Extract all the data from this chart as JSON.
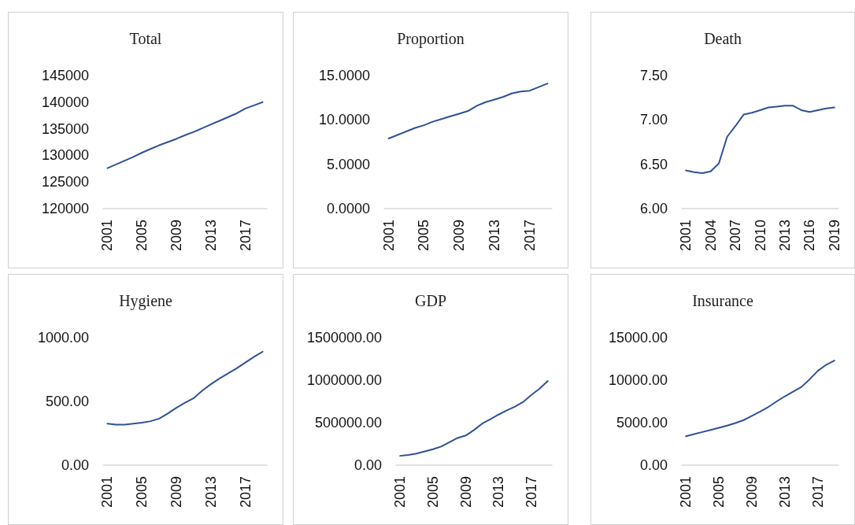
{
  "chart_data": [
    {
      "type": "line",
      "title": "Total",
      "categories": [
        "2001",
        null,
        null,
        null,
        "2005",
        null,
        null,
        null,
        "2009",
        null,
        null,
        null,
        "2013",
        null,
        null,
        null,
        "2017",
        null,
        null
      ],
      "series": [
        {
          "color": "#2f5196",
          "values": [
            127600,
            128300,
            129000,
            129700,
            130500,
            131200,
            131900,
            132500,
            133100,
            133800,
            134400,
            135100,
            135800,
            136500,
            137200,
            137900,
            138800,
            139400,
            140000
          ]
        }
      ],
      "ylim": [
        120000,
        145000
      ],
      "yticks": [
        120000,
        125000,
        130000,
        135000,
        140000,
        145000
      ],
      "grid": false,
      "marker": "none",
      "line_style": "solid"
    },
    {
      "type": "line",
      "title": "Proportion",
      "categories": [
        "2001",
        null,
        null,
        null,
        "2005",
        null,
        null,
        null,
        "2009",
        null,
        null,
        null,
        "2013",
        null,
        null,
        null,
        "2017",
        null,
        null
      ],
      "series": [
        {
          "color": "#2f5196",
          "values": [
            7.9,
            8.3,
            8.7,
            9.1,
            9.4,
            9.8,
            10.1,
            10.4,
            10.7,
            11.0,
            11.6,
            12.0,
            12.3,
            12.6,
            13.0,
            13.2,
            13.3,
            13.7,
            14.1
          ]
        }
      ],
      "ylim": [
        0,
        15
      ],
      "yticks": [
        {
          "value": 0,
          "label": "0.0000"
        },
        {
          "value": 5,
          "label": "5.0000"
        },
        {
          "value": 10,
          "label": "10.0000"
        },
        {
          "value": 15,
          "label": "15.0000"
        }
      ],
      "grid": false,
      "marker": "none",
      "line_style": "solid"
    },
    {
      "type": "line",
      "title": "Death",
      "categories": [
        "2001",
        null,
        null,
        "2004",
        null,
        null,
        "2007",
        null,
        null,
        "2010",
        null,
        null,
        "2013",
        null,
        null,
        "2016",
        null,
        null,
        "2019"
      ],
      "series": [
        {
          "color": "#2f5196",
          "values": [
            6.43,
            6.41,
            6.4,
            6.42,
            6.51,
            6.81,
            6.93,
            7.06,
            7.08,
            7.11,
            7.14,
            7.15,
            7.16,
            7.16,
            7.11,
            7.09,
            7.11,
            7.13,
            7.14
          ]
        }
      ],
      "ylim": [
        6,
        7.5
      ],
      "yticks": [
        {
          "value": 6,
          "label": "6.00"
        },
        {
          "value": 6.5,
          "label": "6.50"
        },
        {
          "value": 7,
          "label": "7.00"
        },
        {
          "value": 7.5,
          "label": "7.50"
        }
      ],
      "grid": false,
      "marker": "none",
      "line_style": "solid"
    },
    {
      "type": "line",
      "title": "Hygiene",
      "categories": [
        "2001",
        null,
        null,
        null,
        "2005",
        null,
        null,
        null,
        "2009",
        null,
        null,
        null,
        "2013",
        null,
        null,
        null,
        "2017",
        null,
        null
      ],
      "series": [
        {
          "color": "#2f5196",
          "values": [
            326,
            318,
            318,
            325,
            333,
            345,
            365,
            405,
            450,
            490,
            525,
            585,
            635,
            680,
            720,
            760,
            805,
            850,
            890
          ]
        }
      ],
      "ylim": [
        0,
        1000
      ],
      "yticks": [
        {
          "value": 0,
          "label": "0.00"
        },
        {
          "value": 500,
          "label": "500.00"
        },
        {
          "value": 1000,
          "label": "1000.00"
        }
      ],
      "grid": false,
      "marker": "none",
      "line_style": "solid"
    },
    {
      "type": "line",
      "title": "GDP",
      "categories": [
        "2001",
        null,
        null,
        null,
        "2005",
        null,
        null,
        null,
        "2009",
        null,
        null,
        null,
        "2013",
        null,
        null,
        null,
        "2017",
        null,
        null
      ],
      "series": [
        {
          "color": "#2f5196",
          "values": [
            110000,
            120000,
            137000,
            162000,
            187000,
            219000,
            270000,
            320000,
            349000,
            413000,
            489000,
            540000,
            595000,
            644000,
            689000,
            744000,
            827000,
            900000,
            990000
          ]
        }
      ],
      "ylim": [
        0,
        1500000
      ],
      "yticks": [
        {
          "value": 0,
          "label": "0.00"
        },
        {
          "value": 500000,
          "label": "500000.00"
        },
        {
          "value": 1000000,
          "label": "1000000.00"
        },
        {
          "value": 1500000,
          "label": "1500000.00"
        }
      ],
      "grid": false,
      "marker": "none",
      "line_style": "solid"
    },
    {
      "type": "line",
      "title": "Insurance",
      "categories": [
        "2001",
        null,
        null,
        null,
        "2005",
        null,
        null,
        null,
        "2009",
        null,
        null,
        null,
        "2013",
        null,
        null,
        null,
        "2017",
        null,
        null
      ],
      "series": [
        {
          "color": "#2f5196",
          "values": [
            3400,
            3650,
            3900,
            4150,
            4400,
            4650,
            4950,
            5300,
            5800,
            6300,
            6850,
            7500,
            8100,
            8650,
            9200,
            10100,
            11100,
            11800,
            12300
          ]
        }
      ],
      "ylim": [
        0,
        15000
      ],
      "yticks": [
        {
          "value": 0,
          "label": "0.00"
        },
        {
          "value": 5000,
          "label": "5000.00"
        },
        {
          "value": 10000,
          "label": "10000.00"
        },
        {
          "value": 15000,
          "label": "15000.00"
        }
      ],
      "grid": false,
      "marker": "none",
      "line_style": "solid"
    }
  ]
}
